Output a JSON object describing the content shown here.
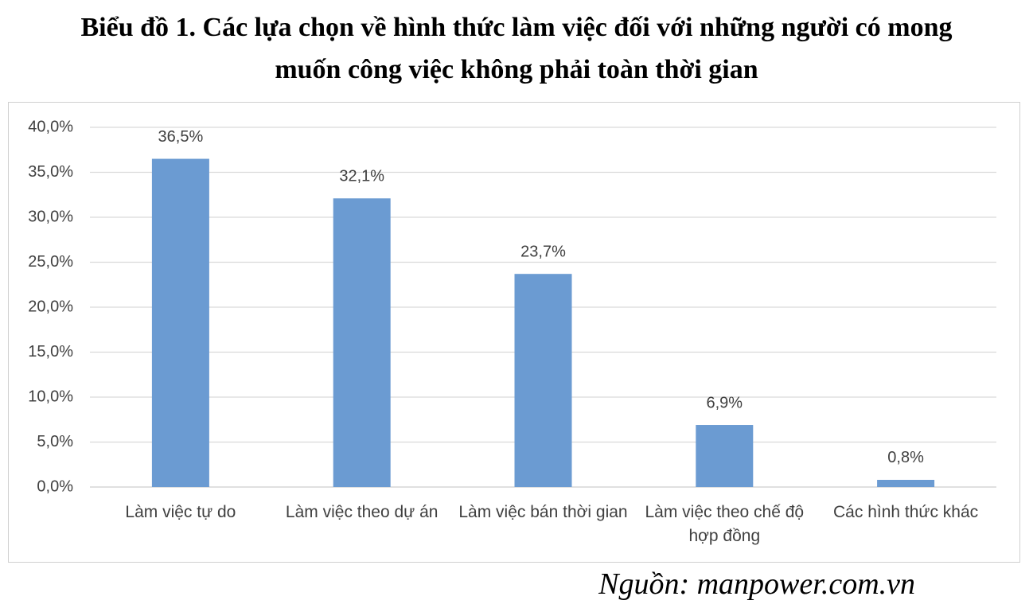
{
  "chart_data": {
    "type": "bar",
    "title": "Biểu đồ 1. Các lựa chọn về hình thức làm việc đối với những người có mong muốn công việc không phải toàn thời gian",
    "categories": [
      "Làm việc tự do",
      "Làm việc theo dự án",
      "Làm việc bán thời gian",
      "Làm việc theo chế độ hợp đồng",
      "Các hình thức khác"
    ],
    "values": [
      36.5,
      32.1,
      23.7,
      6.9,
      0.8
    ],
    "value_labels": [
      "36,5%",
      "32,1%",
      "23,7%",
      "6,9%",
      "0,8%"
    ],
    "color": "#6b9bd2",
    "ylim": [
      0,
      40
    ],
    "yticks": [
      {
        "value": 0,
        "label": "0,0%"
      },
      {
        "value": 5,
        "label": "5,0%"
      },
      {
        "value": 10,
        "label": "10,0%"
      },
      {
        "value": 15,
        "label": "15,0%"
      },
      {
        "value": 20,
        "label": "20,0%"
      },
      {
        "value": 25,
        "label": "25,0%"
      },
      {
        "value": 30,
        "label": "30,0%"
      },
      {
        "value": 35,
        "label": "35,0%"
      },
      {
        "value": 40,
        "label": "40,0%"
      }
    ],
    "grid": true,
    "source": "Nguồn: manpower.com.vn"
  }
}
